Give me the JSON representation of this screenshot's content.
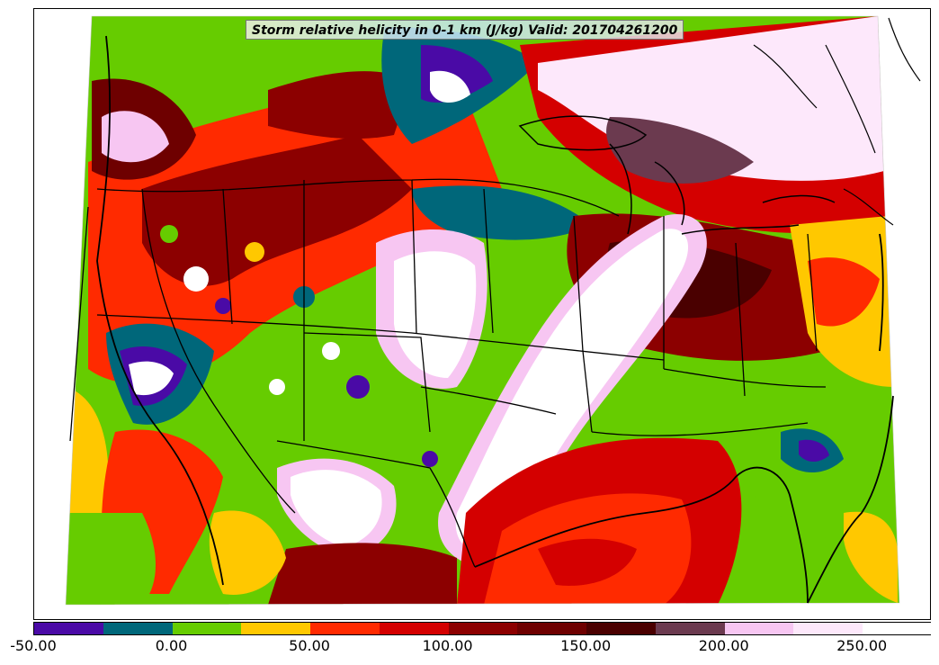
{
  "title": "Storm relative helicity in 0-1 km (J/kg) Valid: 201704261200",
  "colorbar": {
    "levels": [
      -50,
      -25,
      0,
      25,
      50,
      75,
      100,
      125,
      150,
      175,
      200,
      225,
      250,
      275
    ],
    "colors": [
      "#4a0aa6",
      "#00677a",
      "#66cc00",
      "#ffc800",
      "#ff2a00",
      "#d40000",
      "#8c0000",
      "#6e0000",
      "#4a0000",
      "#6b3a4f",
      "#f7c6f2",
      "#fde8fb",
      "#ffffff"
    ],
    "tick_labels": [
      {
        "value": -50,
        "text": "-50.00"
      },
      {
        "value": 0,
        "text": "0.00"
      },
      {
        "value": 50,
        "text": "50.00"
      },
      {
        "value": 100,
        "text": "100.00"
      },
      {
        "value": 150,
        "text": "150.00"
      },
      {
        "value": 200,
        "text": "200.00"
      },
      {
        "value": 250,
        "text": "250.00"
      }
    ]
  },
  "map": {
    "region": "contiguous United States",
    "field": "0-1 km storm relative helicity",
    "boundaries": [
      "country borders",
      "state borders",
      "coastlines",
      "lakes"
    ]
  }
}
